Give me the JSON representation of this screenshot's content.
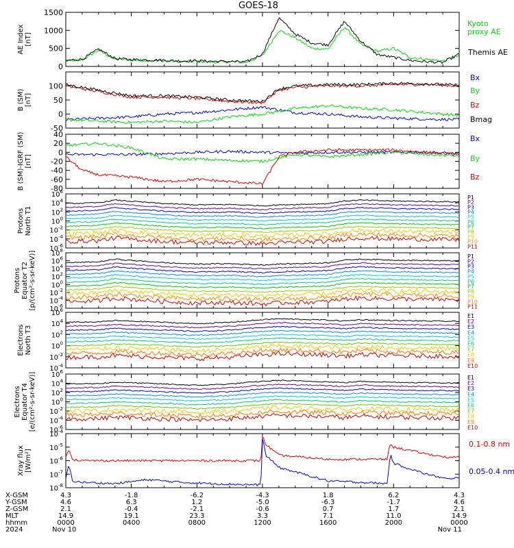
{
  "title": "GOES-18",
  "chart_data": [
    {
      "type": "line",
      "panel": "ae",
      "ylabel": "AE Index\n[nT]",
      "ylim": [
        0,
        1500
      ],
      "yticks": [
        {
          "value": 0,
          "label": "0"
        },
        {
          "value": 500,
          "label": "500"
        },
        {
          "value": 1000,
          "label": "1000"
        },
        {
          "value": 1500,
          "label": "1500"
        }
      ],
      "series": [
        {
          "name": "Kyoto\nproxy AE",
          "color": "#00dd00",
          "x": [
            0,
            1,
            2,
            3,
            4,
            5,
            6,
            7,
            8,
            9,
            10,
            11,
            12,
            13,
            14,
            15,
            16,
            17,
            18,
            19,
            20,
            21,
            22,
            23,
            24
          ],
          "y": [
            150,
            180,
            450,
            200,
            180,
            170,
            160,
            130,
            140,
            120,
            130,
            110,
            300,
            1000,
            800,
            500,
            480,
            1100,
            600,
            420,
            500,
            250,
            200,
            150,
            300
          ]
        },
        {
          "name": "Themis AE",
          "color": "#000000",
          "x": [
            0,
            1,
            2,
            3,
            4,
            5,
            6,
            7,
            8,
            9,
            10,
            11,
            12,
            13,
            14,
            15,
            16,
            17,
            18,
            19,
            20,
            21,
            22,
            23,
            24
          ],
          "y": [
            160,
            200,
            480,
            220,
            190,
            180,
            170,
            150,
            160,
            140,
            140,
            120,
            350,
            1350,
            900,
            650,
            600,
            1250,
            700,
            330,
            250,
            170,
            130,
            110,
            340
          ]
        }
      ]
    },
    {
      "type": "line",
      "panel": "b_sm",
      "ylabel": "B (SM)\n[nT]",
      "ylim": [
        -50,
        150
      ],
      "yticks": [
        {
          "value": -50,
          "label": "-50"
        },
        {
          "value": 0,
          "label": "0"
        },
        {
          "value": 50,
          "label": "50"
        },
        {
          "value": 100,
          "label": "100"
        }
      ],
      "series": [
        {
          "name": "Bx",
          "color": "#0000cc",
          "x": [
            0,
            4,
            6,
            8,
            10,
            12,
            14,
            16,
            18,
            20,
            22,
            24
          ],
          "y": [
            -20,
            -10,
            0,
            5,
            15,
            25,
            5,
            0,
            -10,
            -15,
            -18,
            -20
          ]
        },
        {
          "name": "By",
          "color": "#00dd00",
          "x": [
            0,
            4,
            6,
            8,
            10,
            12,
            14,
            16,
            18,
            20,
            22,
            24
          ],
          "y": [
            -20,
            -30,
            -25,
            -30,
            -10,
            0,
            20,
            30,
            20,
            15,
            5,
            -5
          ]
        },
        {
          "name": "Bz",
          "color": "#dd0000",
          "x": [
            0,
            2,
            4,
            6,
            8,
            10,
            12,
            13,
            14,
            16,
            18,
            20,
            22,
            24
          ],
          "y": [
            100,
            80,
            60,
            60,
            55,
            45,
            40,
            85,
            95,
            100,
            100,
            105,
            105,
            100
          ]
        },
        {
          "name": "Bmag",
          "color": "#000000",
          "x": [
            0,
            2,
            4,
            6,
            8,
            10,
            12,
            13,
            14,
            16,
            18,
            20,
            22,
            24
          ],
          "y": [
            105,
            85,
            65,
            65,
            60,
            50,
            45,
            90,
            100,
            105,
            105,
            110,
            108,
            102
          ]
        }
      ]
    },
    {
      "type": "line",
      "panel": "b_igrf",
      "ylabel": "B (SM)-IGRF (SM)\n[nT]",
      "ylim": [
        -80,
        40
      ],
      "yticks": [
        {
          "value": -80,
          "label": "-80"
        },
        {
          "value": -60,
          "label": "-60"
        },
        {
          "value": -40,
          "label": "-40"
        },
        {
          "value": -20,
          "label": "-20"
        },
        {
          "value": 0,
          "label": "0"
        },
        {
          "value": 20,
          "label": "20"
        },
        {
          "value": 40,
          "label": "40"
        }
      ],
      "series": [
        {
          "name": "Bx",
          "color": "#0000cc",
          "x": [
            0,
            4,
            6,
            8,
            10,
            12,
            14,
            16,
            18,
            20,
            22,
            24
          ],
          "y": [
            -5,
            -5,
            -3,
            0,
            2,
            0,
            -2,
            0,
            0,
            0,
            0,
            -3
          ]
        },
        {
          "name": "By",
          "color": "#00dd00",
          "x": [
            0,
            2,
            4,
            6,
            8,
            10,
            12,
            14,
            16,
            18,
            20,
            22,
            24
          ],
          "y": [
            15,
            20,
            10,
            -15,
            -15,
            -18,
            -20,
            -5,
            -10,
            -5,
            0,
            -5,
            -8
          ]
        },
        {
          "name": "Bz",
          "color": "#dd0000",
          "x": [
            0,
            1,
            2,
            4,
            6,
            8,
            10,
            12,
            13,
            14,
            16,
            18,
            20,
            22,
            24
          ],
          "y": [
            -10,
            -40,
            -50,
            -55,
            -65,
            -60,
            -65,
            -70,
            -10,
            0,
            5,
            5,
            5,
            0,
            -5
          ]
        }
      ]
    },
    {
      "type": "line",
      "panel": "protons_t1",
      "ylabel": "Protons\nNorth T1",
      "scale": "log",
      "ylim": [
        -6,
        6
      ],
      "ytick_labels": [
        "10^-6",
        "10^-4",
        "10^-2",
        "10^0",
        "10^2",
        "10^4",
        "10^6"
      ],
      "series_names": [
        "P1",
        "P2",
        "P3",
        "P4",
        "P5",
        "P6",
        "P7",
        "P8",
        "P9",
        "P10",
        "P11"
      ]
    },
    {
      "type": "line",
      "panel": "protons_t2",
      "ylabel": "Protons\nEquator T2\n[p/(cm²-s-sr-keV)]",
      "scale": "log",
      "ylim": [
        -6,
        8
      ],
      "ytick_labels": [
        "10^-6",
        "10^-4",
        "10^-2",
        "10^0",
        "10^2",
        "10^4",
        "10^6",
        "10^8"
      ],
      "series_names": [
        "P1",
        "P2",
        "P3",
        "P4",
        "P5",
        "P6",
        "P7",
        "P8",
        "P9",
        "P10",
        "P11"
      ]
    },
    {
      "type": "line",
      "panel": "electrons_t3",
      "ylabel": "Electrons\nNorth T3",
      "scale": "log",
      "ylim": [
        -4,
        6
      ],
      "ytick_labels": [
        "10^-4",
        "10^-2",
        "10^0",
        "10^2",
        "10^4",
        "10^6"
      ],
      "series_names": [
        "E1",
        "E2",
        "E3",
        "E4",
        "E5",
        "E6",
        "E7",
        "E8",
        "E9",
        "E10"
      ]
    },
    {
      "type": "line",
      "panel": "electrons_t4",
      "ylabel": "Electrons\nEquator T4\n[e/(cm²-s-sr-keV)]",
      "scale": "log",
      "ylim": [
        -6,
        6
      ],
      "ytick_labels": [
        "10^-6",
        "10^-4",
        "10^-2",
        "10^0",
        "10^2",
        "10^4",
        "10^6"
      ],
      "series_names": [
        "E1",
        "E2",
        "E3",
        "E4",
        "E5",
        "E6",
        "E7",
        "E8",
        "E9",
        "E10"
      ]
    },
    {
      "type": "line",
      "panel": "xray",
      "ylabel": "Xray flux\n[W/m²]",
      "scale": "log",
      "ylim": [
        -8,
        -4
      ],
      "ytick_labels": [
        "10^-8",
        "10^-7",
        "10^-6",
        "10^-5",
        "10^-4"
      ],
      "series": [
        {
          "name": "0.1-0.8 nm",
          "color": "#dd0000",
          "x": [
            0,
            0.2,
            0.4,
            1,
            3,
            6,
            10,
            11.9,
            12,
            12.2,
            13,
            16,
            18,
            19.6,
            19.8,
            20,
            22,
            23.5,
            24
          ],
          "y": [
            -5.7,
            -5.1,
            -5.9,
            -6.0,
            -6.0,
            -6.0,
            -6.0,
            -6.0,
            -4.2,
            -4.8,
            -5.6,
            -5.9,
            -5.9,
            -5.9,
            -4.7,
            -5.0,
            -5.5,
            -5.8,
            -5.7
          ]
        },
        {
          "name": "0.05-0.4 nm",
          "color": "#0000cc",
          "x": [
            0,
            0.2,
            0.4,
            1,
            3,
            5,
            7,
            9,
            11.9,
            12,
            12.2,
            13,
            16,
            18,
            19.6,
            19.8,
            20,
            22,
            23.5,
            24
          ],
          "y": [
            -7.3,
            -6.3,
            -7.5,
            -7.6,
            -7.7,
            -7.4,
            -7.6,
            -7.7,
            -7.8,
            -4.3,
            -5.6,
            -6.5,
            -7.5,
            -7.6,
            -7.7,
            -5.5,
            -6.2,
            -7.0,
            -7.4,
            -7.2
          ]
        }
      ]
    }
  ],
  "xaxis": {
    "row_labels": [
      "X-GSM",
      "Y-GSM",
      "Z-GSM",
      "MLT",
      "hhmm",
      "2024"
    ],
    "columns": [
      [
        "4.3",
        "4.6",
        "2.1",
        "14.9",
        "0000",
        "Nov 10"
      ],
      [
        "-1.8",
        "6.3",
        "-0.4",
        "19.1",
        "0400",
        ""
      ],
      [
        "-6.2",
        "1.2",
        "-2.1",
        "23.3",
        "0800",
        ""
      ],
      [
        "-4.3",
        "-5.0",
        "-0.6",
        "3.3",
        "1200",
        ""
      ],
      [
        "1.8",
        "-6.3",
        "0.7",
        "7.1",
        "1600",
        ""
      ],
      [
        "6.2",
        "-1.7",
        "1.7",
        "11.0",
        "2000",
        ""
      ],
      [
        "4.3",
        "4.6",
        "2.1",
        "14.9",
        "0000",
        "Nov 11"
      ]
    ]
  }
}
